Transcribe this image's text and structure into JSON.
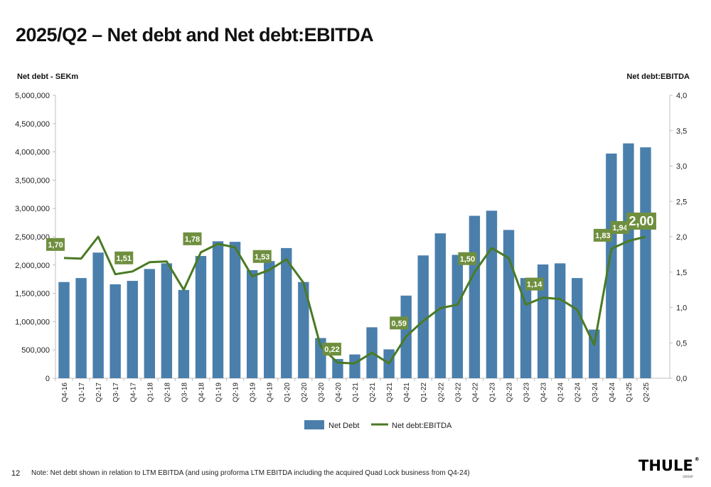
{
  "page": {
    "title": "2025/Q2 – Net debt and Net debt:EBITDA",
    "page_number": "12",
    "note": "Note: Net debt shown in relation to LTM EBITDA (and using proforma LTM EBITDA including the acquired Quad Lock business from Q4-24)",
    "logo_text": "THULE",
    "logo_sub": "GROUP"
  },
  "colors": {
    "bar": "#4a7fac",
    "line": "#4a7a23",
    "label_bg": "#6f8f3f",
    "label_text": "#ffffff",
    "axis": "#bfbfbf"
  },
  "chart_data": {
    "type": "bar",
    "title": "2025/Q2 – Net debt and Net debt:EBITDA",
    "ylabel": "Net debt - SEKm",
    "y2label": "Net debt:EBITDA",
    "ylim": [
      0,
      5000000
    ],
    "y2lim": [
      0,
      4
    ],
    "yticks": [
      "0",
      "500,000",
      "1,000,000",
      "1,500,000",
      "2,000,000",
      "2,500,000",
      "3,000,000",
      "3,500,000",
      "4,000,000",
      "4,500,000",
      "5,000,000"
    ],
    "y2ticks": [
      "0,0",
      "0,5",
      "1,0",
      "1,5",
      "2,0",
      "2,5",
      "3,0",
      "3,5",
      "4,0"
    ],
    "categories": [
      "Q4-16",
      "Q1-17",
      "Q2-17",
      "Q3-17",
      "Q4-17",
      "Q1-18",
      "Q2-18",
      "Q3-18",
      "Q4-18",
      "Q1-19",
      "Q2-19",
      "Q3-19",
      "Q4-19",
      "Q1-20",
      "Q2-20",
      "Q3-20",
      "Q4-20",
      "Q1-21",
      "Q2-21",
      "Q3-21",
      "Q4-21",
      "Q1-22",
      "Q2-22",
      "Q3-22",
      "Q4-22",
      "Q1-23",
      "Q2-23",
      "Q3-23",
      "Q4-23",
      "Q1-24",
      "Q2-24",
      "Q3-24",
      "Q4-24",
      "Q1-25",
      "Q2-25"
    ],
    "series": [
      {
        "name": "Net Debt",
        "type": "bar",
        "axis": "left",
        "values": [
          1700000,
          1770000,
          2220000,
          1660000,
          1720000,
          1930000,
          2030000,
          1560000,
          2160000,
          2420000,
          2410000,
          1910000,
          2070000,
          2300000,
          1700000,
          710000,
          340000,
          420000,
          900000,
          510000,
          1460000,
          2170000,
          2560000,
          2180000,
          2870000,
          2960000,
          2620000,
          1770000,
          2010000,
          2030000,
          1770000,
          860000,
          3970000,
          4150000,
          4080000
        ]
      },
      {
        "name": "Net debt:EBITDA",
        "type": "line",
        "axis": "right",
        "values": [
          1.7,
          1.69,
          2.0,
          1.47,
          1.51,
          1.64,
          1.65,
          1.25,
          1.78,
          1.9,
          1.85,
          1.44,
          1.53,
          1.68,
          1.35,
          0.45,
          0.22,
          0.21,
          0.36,
          0.21,
          0.59,
          0.81,
          0.99,
          1.04,
          1.5,
          1.84,
          1.7,
          1.04,
          1.14,
          1.12,
          0.97,
          0.47,
          1.83,
          1.94,
          2.0
        ]
      }
    ],
    "data_labels": [
      {
        "index": 0,
        "text": "1,70"
      },
      {
        "index": 4,
        "text": "1,51"
      },
      {
        "index": 8,
        "text": "1,78"
      },
      {
        "index": 12,
        "text": "1,53"
      },
      {
        "index": 16,
        "text": "0,22"
      },
      {
        "index": 20,
        "text": "0,59"
      },
      {
        "index": 24,
        "text": "1,50"
      },
      {
        "index": 28,
        "text": "1,14"
      },
      {
        "index": 32,
        "text": "1,83"
      },
      {
        "index": 33,
        "text": "1,94"
      },
      {
        "index": 34,
        "text": "2,00",
        "emphasis": true
      }
    ],
    "legend": {
      "position": "bottom",
      "items": [
        "Net Debt",
        "Net debt:EBITDA"
      ]
    }
  }
}
